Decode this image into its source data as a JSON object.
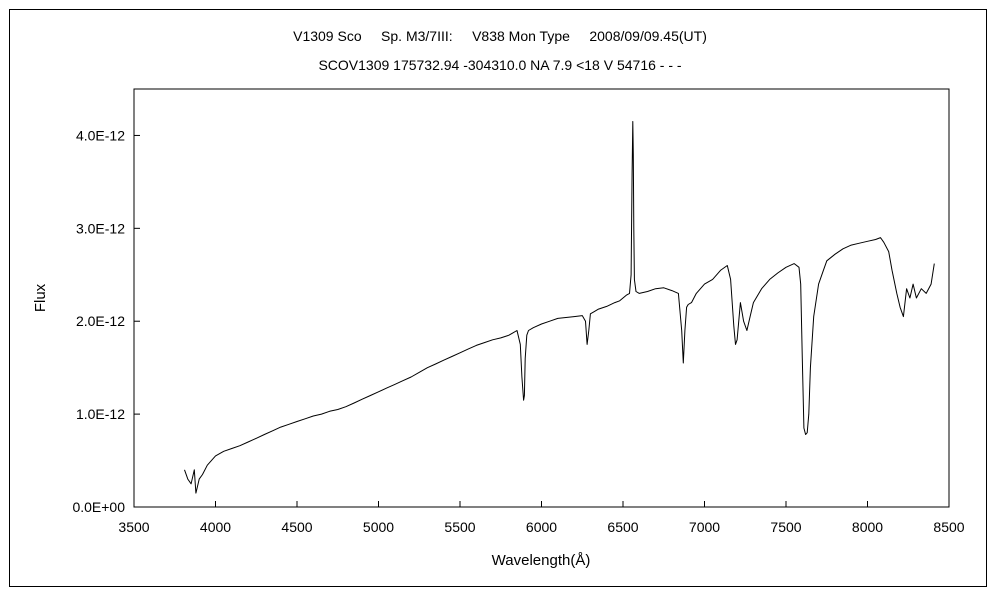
{
  "chart_data": {
    "type": "line",
    "title": "V1309 Sco     Sp. M3/7III:     V838 Mon Type     2008/09/09.45(UT)",
    "subtitle": "SCOV1309 175732.94 -304310.0 NA 7.9 <18 V 54716 - - -",
    "xlabel": "Wavelength(Å)",
    "ylabel": "Flux",
    "xlim": [
      3500,
      8500
    ],
    "ylim": [
      0,
      4.5e-12
    ],
    "x_ticks": [
      3500,
      4000,
      4500,
      5000,
      5500,
      6000,
      6500,
      7000,
      7500,
      8000,
      8500
    ],
    "x_tick_labels": [
      "3500",
      "4000",
      "4500",
      "5000",
      "5500",
      "6000",
      "6500",
      "7000",
      "7500",
      "8000",
      "8500"
    ],
    "y_ticks": [
      0,
      1e-12,
      2e-12,
      3e-12,
      4e-12
    ],
    "y_tick_labels": [
      "0.0E+00",
      "1.0E-12",
      "2.0E-12",
      "3.0E-12",
      "4.0E-12"
    ],
    "grid": false,
    "series": [
      {
        "color": "#000000",
        "x": [
          3810,
          3830,
          3850,
          3870,
          3880,
          3900,
          3920,
          3950,
          4000,
          4050,
          4100,
          4150,
          4200,
          4250,
          4300,
          4350,
          4400,
          4450,
          4500,
          4550,
          4600,
          4650,
          4700,
          4750,
          4800,
          4850,
          4900,
          4950,
          5000,
          5050,
          5100,
          5150,
          5200,
          5250,
          5300,
          5350,
          5400,
          5450,
          5500,
          5550,
          5600,
          5650,
          5700,
          5750,
          5800,
          5820,
          5850,
          5870,
          5880,
          5890,
          5895,
          5900,
          5910,
          5920,
          5950,
          6000,
          6050,
          6100,
          6150,
          6200,
          6250,
          6270,
          6280,
          6290,
          6300,
          6320,
          6350,
          6400,
          6450,
          6480,
          6500,
          6520,
          6540,
          6550,
          6556,
          6560,
          6563,
          6566,
          6570,
          6580,
          6600,
          6650,
          6700,
          6750,
          6800,
          6840,
          6860,
          6870,
          6880,
          6890,
          6900,
          6920,
          6950,
          7000,
          7050,
          7100,
          7140,
          7160,
          7180,
          7190,
          7200,
          7220,
          7240,
          7260,
          7280,
          7300,
          7350,
          7400,
          7450,
          7500,
          7550,
          7580,
          7590,
          7600,
          7610,
          7620,
          7630,
          7640,
          7650,
          7670,
          7700,
          7730,
          7750,
          7800,
          7850,
          7900,
          7950,
          8000,
          8050,
          8080,
          8100,
          8130,
          8150,
          8180,
          8200,
          8220,
          8240,
          8260,
          8280,
          8300,
          8330,
          8360,
          8390,
          8410
        ],
        "y": [
          4e-13,
          3e-13,
          2.5e-13,
          4e-13,
          1.5e-13,
          3e-13,
          3.5e-13,
          4.5e-13,
          5.5e-13,
          6e-13,
          6.3e-13,
          6.6e-13,
          7e-13,
          7.4e-13,
          7.8e-13,
          8.2e-13,
          8.6e-13,
          8.9e-13,
          9.2e-13,
          9.5e-13,
          9.8e-13,
          1e-12,
          1.03e-12,
          1.05e-12,
          1.08e-12,
          1.12e-12,
          1.16e-12,
          1.2e-12,
          1.24e-12,
          1.28e-12,
          1.32e-12,
          1.36e-12,
          1.4e-12,
          1.45e-12,
          1.5e-12,
          1.54e-12,
          1.58e-12,
          1.62e-12,
          1.66e-12,
          1.7e-12,
          1.74e-12,
          1.77e-12,
          1.8e-12,
          1.82e-12,
          1.85e-12,
          1.87e-12,
          1.9e-12,
          1.75e-12,
          1.4e-12,
          1.15e-12,
          1.2e-12,
          1.6e-12,
          1.85e-12,
          1.9e-12,
          1.93e-12,
          1.97e-12,
          2e-12,
          2.03e-12,
          2.04e-12,
          2.05e-12,
          2.06e-12,
          2e-12,
          1.75e-12,
          1.9e-12,
          2.08e-12,
          2.1e-12,
          2.13e-12,
          2.16e-12,
          2.2e-12,
          2.22e-12,
          2.25e-12,
          2.28e-12,
          2.3e-12,
          2.5e-12,
          3.6e-12,
          4.15e-12,
          3.8e-12,
          3e-12,
          2.45e-12,
          2.32e-12,
          2.3e-12,
          2.32e-12,
          2.35e-12,
          2.36e-12,
          2.33e-12,
          2.3e-12,
          1.9e-12,
          1.55e-12,
          1.9e-12,
          2.15e-12,
          2.18e-12,
          2.2e-12,
          2.3e-12,
          2.4e-12,
          2.45e-12,
          2.55e-12,
          2.6e-12,
          2.45e-12,
          1.95e-12,
          1.75e-12,
          1.8e-12,
          2.2e-12,
          2e-12,
          1.9e-12,
          2.05e-12,
          2.2e-12,
          2.35e-12,
          2.45e-12,
          2.52e-12,
          2.58e-12,
          2.62e-12,
          2.58e-12,
          2.4e-12,
          1.6e-12,
          8.5e-13,
          7.8e-13,
          8e-13,
          1e-12,
          1.5e-12,
          2.05e-12,
          2.4e-12,
          2.55e-12,
          2.65e-12,
          2.72e-12,
          2.78e-12,
          2.82e-12,
          2.84e-12,
          2.86e-12,
          2.88e-12,
          2.9e-12,
          2.85e-12,
          2.75e-12,
          2.55e-12,
          2.3e-12,
          2.15e-12,
          2.05e-12,
          2.35e-12,
          2.25e-12,
          2.4e-12,
          2.25e-12,
          2.35e-12,
          2.3e-12,
          2.4e-12,
          2.62e-12
        ]
      }
    ]
  }
}
